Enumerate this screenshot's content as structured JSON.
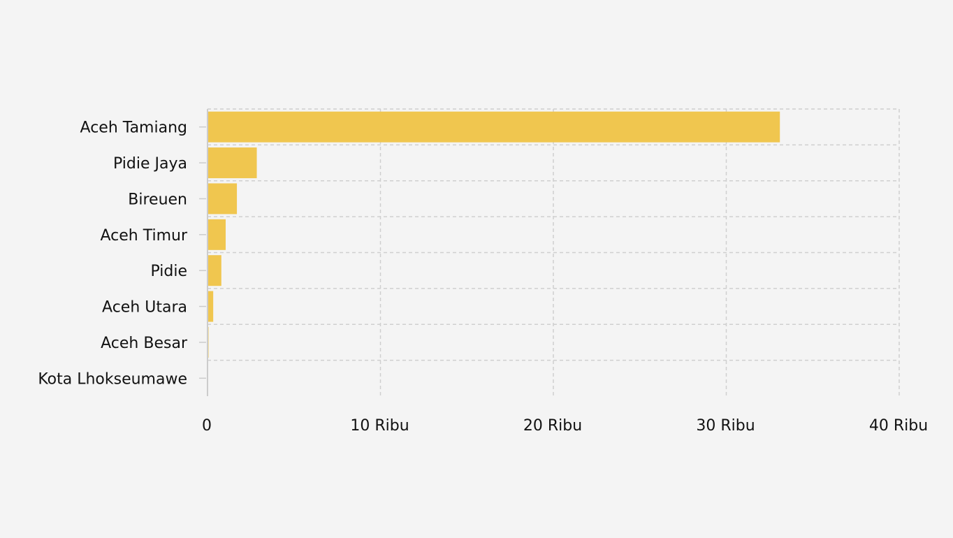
{
  "chart_data": {
    "type": "bar",
    "orientation": "horizontal",
    "title": "",
    "xlabel": "",
    "ylabel": "",
    "categories": [
      "Aceh Tamiang",
      "Pidie Jaya",
      "Bireuen",
      "Aceh Timur",
      "Pidie",
      "Aceh Utara",
      "Aceh Besar",
      "Kota Lhokseumawe"
    ],
    "values": [
      33100,
      2850,
      1700,
      1050,
      800,
      330,
      60,
      0
    ],
    "xlim": [
      0,
      40000
    ],
    "x_ticks": [
      {
        "value": 0,
        "label": "0"
      },
      {
        "value": 10000,
        "label": "10 Ribu"
      },
      {
        "value": 20000,
        "label": "20 Ribu"
      },
      {
        "value": 30000,
        "label": "30 Ribu"
      },
      {
        "value": 40000,
        "label": "40 Ribu"
      }
    ],
    "bar_color": "#f0c64f",
    "grid": true,
    "legend": "none"
  }
}
